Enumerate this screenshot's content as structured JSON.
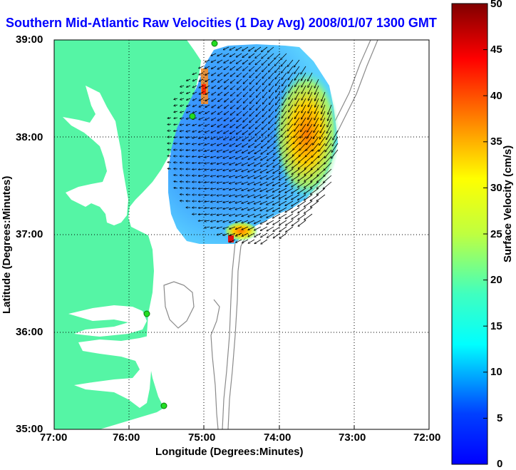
{
  "title": "Southern Mid-Atlantic Raw Velocities (1 Day Avg) 2008/01/07 1300 GMT",
  "map": {
    "x_axis_label": "Longitude (Degrees:Minutes)",
    "y_axis_label": "Latitude (Degrees:Minutes)",
    "x_ticks": [
      "77:00",
      "76:00",
      "75:00",
      "74:00",
      "73:00",
      "72:00"
    ],
    "y_ticks": [
      "39:00",
      "38:00",
      "37:00",
      "36:00",
      "35:00"
    ],
    "x_range_deg_west": [
      77,
      72
    ],
    "y_range_deg_north": [
      35,
      39
    ],
    "grid": "dotted",
    "land_color": "#55f5a5"
  },
  "colorbar": {
    "label": "Surface Velocity (cm/s)",
    "ticks": [
      "50",
      "45",
      "40",
      "35",
      "30",
      "25",
      "20",
      "15",
      "10",
      "5",
      "0"
    ],
    "range": [
      0,
      50
    ],
    "colormap": "jet"
  },
  "stations": [
    {
      "lon": -75.11,
      "lat": 38.97
    },
    {
      "lon": -75.16,
      "lat": 38.22
    },
    {
      "lon": -75.78,
      "lat": 36.17
    },
    {
      "lon": -75.52,
      "lat": 35.22
    }
  ]
}
